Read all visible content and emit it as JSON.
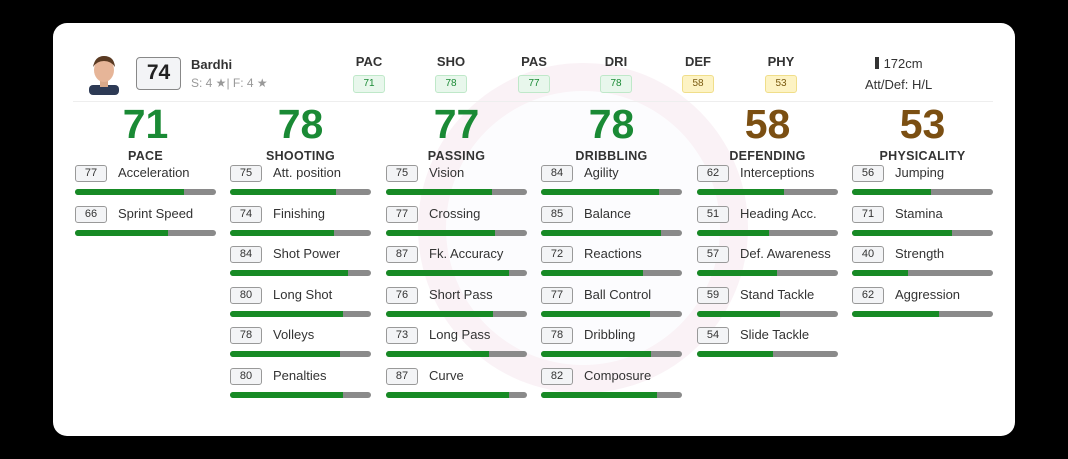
{
  "player": {
    "name": "Bardhi",
    "overall": "74",
    "skills_weakfoot": "S: 4 ★| F: 4 ★",
    "height": "172cm",
    "work_rate": "Att/Def: H/L"
  },
  "header_stats": [
    {
      "label": "PAC",
      "value": "71",
      "tone": "green"
    },
    {
      "label": "SHO",
      "value": "78",
      "tone": "green"
    },
    {
      "label": "PAS",
      "value": "77",
      "tone": "green"
    },
    {
      "label": "DRI",
      "value": "78",
      "tone": "green"
    },
    {
      "label": "DEF",
      "value": "58",
      "tone": "yellow"
    },
    {
      "label": "PHY",
      "value": "53",
      "tone": "yellow"
    }
  ],
  "colors": {
    "green": "#1a8a35",
    "brown": "#7b4f12",
    "bar_fill": "#178a25",
    "bar_bg": "#8a8a8a"
  },
  "categories": [
    {
      "value": "71",
      "name": "PACE",
      "color": "#1a8a35",
      "stats": [
        {
          "value": 77,
          "name": "Acceleration"
        },
        {
          "value": 66,
          "name": "Sprint Speed"
        }
      ]
    },
    {
      "value": "78",
      "name": "SHOOTING",
      "color": "#1a8a35",
      "stats": [
        {
          "value": 75,
          "name": "Att. position"
        },
        {
          "value": 74,
          "name": "Finishing"
        },
        {
          "value": 84,
          "name": "Shot Power"
        },
        {
          "value": 80,
          "name": "Long Shot"
        },
        {
          "value": 78,
          "name": "Volleys"
        },
        {
          "value": 80,
          "name": "Penalties"
        }
      ]
    },
    {
      "value": "77",
      "name": "PASSING",
      "color": "#1a8a35",
      "stats": [
        {
          "value": 75,
          "name": "Vision"
        },
        {
          "value": 77,
          "name": "Crossing"
        },
        {
          "value": 87,
          "name": "Fk. Accuracy"
        },
        {
          "value": 76,
          "name": "Short Pass"
        },
        {
          "value": 73,
          "name": "Long Pass"
        },
        {
          "value": 87,
          "name": "Curve"
        }
      ]
    },
    {
      "value": "78",
      "name": "DRIBBLING",
      "color": "#1a8a35",
      "stats": [
        {
          "value": 84,
          "name": "Agility"
        },
        {
          "value": 85,
          "name": "Balance"
        },
        {
          "value": 72,
          "name": "Reactions"
        },
        {
          "value": 77,
          "name": "Ball Control"
        },
        {
          "value": 78,
          "name": "Dribbling"
        },
        {
          "value": 82,
          "name": "Composure"
        }
      ]
    },
    {
      "value": "58",
      "name": "DEFENDING",
      "color": "#7b4f12",
      "stats": [
        {
          "value": 62,
          "name": "Interceptions"
        },
        {
          "value": 51,
          "name": "Heading Acc."
        },
        {
          "value": 57,
          "name": "Def. Awareness"
        },
        {
          "value": 59,
          "name": "Stand Tackle"
        },
        {
          "value": 54,
          "name": "Slide Tackle"
        }
      ]
    },
    {
      "value": "53",
      "name": "PHYSICALITY",
      "color": "#7b4f12",
      "stats": [
        {
          "value": 56,
          "name": "Jumping"
        },
        {
          "value": 71,
          "name": "Stamina"
        },
        {
          "value": 40,
          "name": "Strength"
        },
        {
          "value": 62,
          "name": "Aggression"
        }
      ]
    }
  ]
}
